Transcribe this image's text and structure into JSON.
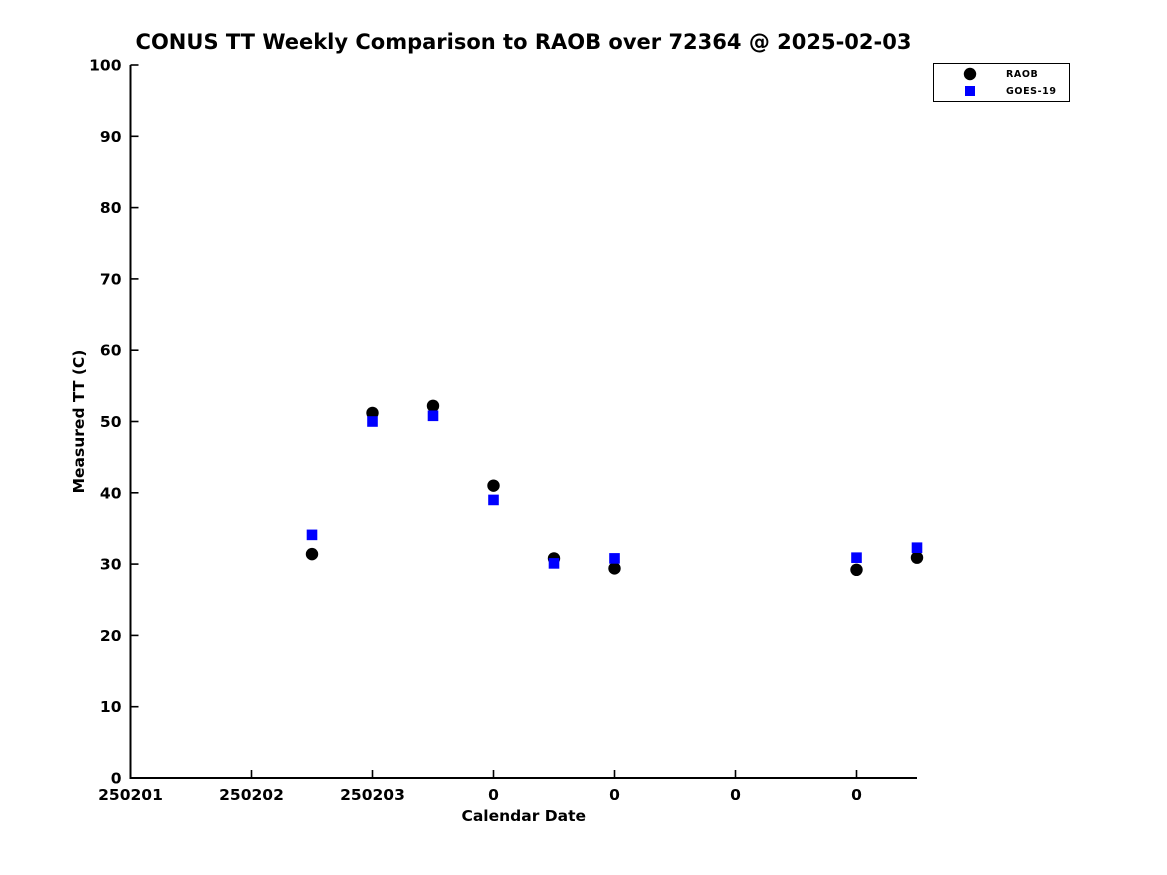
{
  "figure": {
    "title": "CONUS TT Weekly Comparison to RAOB over 72364 @ 2025-02-03"
  },
  "legend": {
    "position": "top-right",
    "items": [
      {
        "label": "RAOB",
        "marker": "circle",
        "color": "#000000"
      },
      {
        "label": "GOES-19",
        "marker": "square",
        "color": "#0000ff"
      }
    ]
  },
  "chart_data": {
    "type": "scatter",
    "title": "CONUS TT Weekly Comparison to RAOB over 72364 @ 2025-02-03",
    "xlabel": "Calendar Date",
    "ylabel": "Measured TT (C)",
    "ylim": [
      0,
      100
    ],
    "y_ticks": [
      0,
      10,
      20,
      30,
      40,
      50,
      60,
      70,
      80,
      90,
      100
    ],
    "xlim_days": [
      0,
      6.5
    ],
    "x_ticks": [
      {
        "day": 0,
        "label": "250201"
      },
      {
        "day": 1,
        "label": "250202"
      },
      {
        "day": 2,
        "label": "250203"
      },
      {
        "day": 3,
        "label": "0"
      },
      {
        "day": 4,
        "label": "0"
      },
      {
        "day": 5,
        "label": "0"
      },
      {
        "day": 6,
        "label": "0"
      }
    ],
    "grid": false,
    "legend_position": "top-right",
    "series": [
      {
        "name": "RAOB",
        "marker": "circle",
        "color": "#000000",
        "points": [
          {
            "day": 1.5,
            "y": 31.4
          },
          {
            "day": 2.0,
            "y": 51.2
          },
          {
            "day": 2.5,
            "y": 52.2
          },
          {
            "day": 3.0,
            "y": 41.0
          },
          {
            "day": 3.5,
            "y": 30.8
          },
          {
            "day": 4.0,
            "y": 29.4
          },
          {
            "day": 6.0,
            "y": 29.2
          },
          {
            "day": 6.5,
            "y": 30.9
          }
        ]
      },
      {
        "name": "GOES-19",
        "marker": "square",
        "color": "#0000ff",
        "points": [
          {
            "day": 1.5,
            "y": 34.1
          },
          {
            "day": 2.0,
            "y": 50.0
          },
          {
            "day": 2.5,
            "y": 50.8
          },
          {
            "day": 3.0,
            "y": 39.0
          },
          {
            "day": 3.5,
            "y": 30.1
          },
          {
            "day": 4.0,
            "y": 30.8
          },
          {
            "day": 6.0,
            "y": 30.9
          },
          {
            "day": 6.5,
            "y": 32.3
          }
        ]
      }
    ]
  }
}
